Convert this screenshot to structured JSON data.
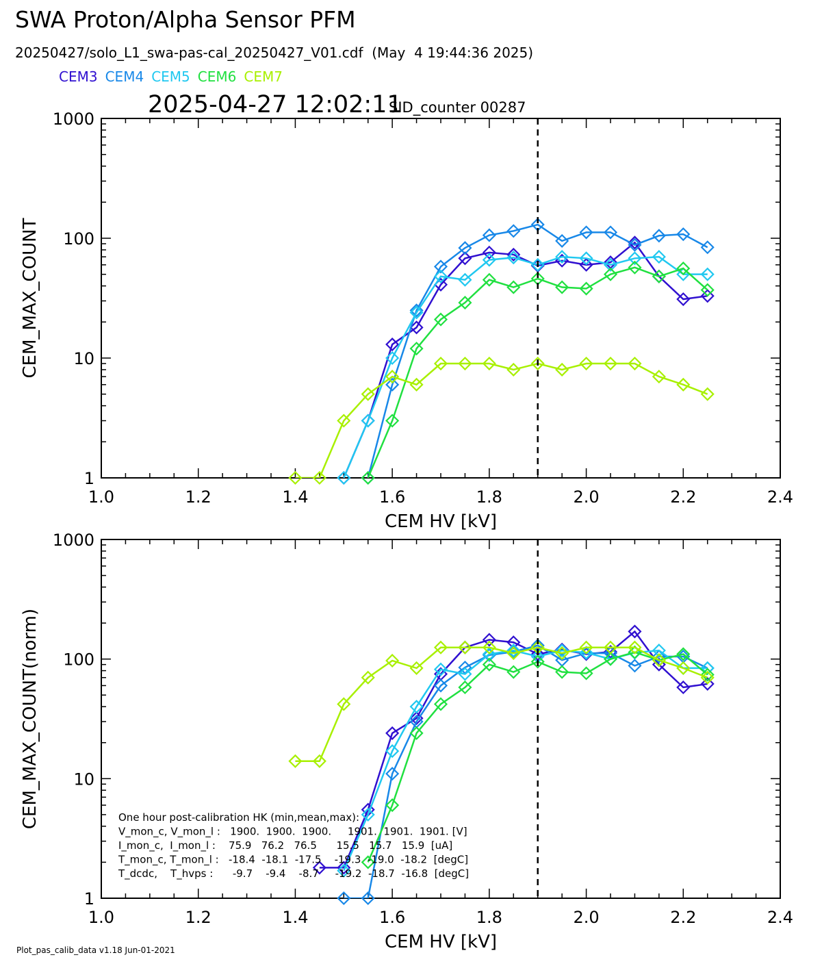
{
  "header": {
    "title": "SWA Proton/Alpha Sensor PFM",
    "file": "20250427/solo_L1_swa-pas-cal_20250427_V01.cdf  (May  4 19:44:36 2025)",
    "timestamp": "2025-04-27 12:02:11",
    "sid": "SID_counter 00287"
  },
  "footer": "Plot_pas_calib_data v1.18 Jun-01-2021",
  "chart_data": [
    {
      "type": "line",
      "xlabel": "CEM HV [kV]",
      "ylabel": "CEM_MAX_COUNT",
      "ylog": true,
      "legend": true,
      "marker": "diamond",
      "vline": 1.9,
      "xlim": [
        1.0,
        2.4
      ],
      "xticks": [
        {
          "value": 1.0,
          "label": "1.0"
        },
        {
          "value": 1.2,
          "label": "1.2"
        },
        {
          "value": 1.4,
          "label": "1.4"
        },
        {
          "value": 1.6,
          "label": "1.6"
        },
        {
          "value": 1.8,
          "label": "1.8"
        },
        {
          "value": 2.0,
          "label": "2.0"
        },
        {
          "value": 2.2,
          "label": "2.2"
        },
        {
          "value": 2.4,
          "label": "2.4"
        }
      ],
      "ylim": [
        1,
        1000
      ],
      "yticks": [
        1,
        10,
        100,
        1000
      ],
      "x": [
        1.4,
        1.45,
        1.5,
        1.55,
        1.6,
        1.65,
        1.7,
        1.75,
        1.8,
        1.85,
        1.9,
        1.95,
        2.0,
        2.05,
        2.1,
        2.15,
        2.2,
        2.25
      ],
      "series": [
        {
          "name": "CEM3",
          "color": "#3010d0",
          "values": [
            null,
            null,
            1,
            3,
            13,
            18,
            41,
            68,
            76,
            73,
            59,
            65,
            60,
            63,
            92,
            48,
            31,
            33
          ]
        },
        {
          "name": "CEM4",
          "color": "#1888e8",
          "values": [
            null,
            null,
            null,
            1,
            6,
            25,
            58,
            83,
            106,
            115,
            130,
            95,
            112,
            112,
            88,
            105,
            108,
            84
          ]
        },
        {
          "name": "CEM5",
          "color": "#20c8f0",
          "values": [
            null,
            null,
            1,
            3,
            10,
            24,
            48,
            45,
            66,
            69,
            60,
            70,
            68,
            60,
            68,
            70,
            50,
            50
          ]
        },
        {
          "name": "CEM6",
          "color": "#20e040",
          "values": [
            null,
            null,
            null,
            1,
            3,
            12,
            21,
            29,
            45,
            39,
            46,
            39,
            38,
            50,
            57,
            48,
            56,
            37
          ]
        },
        {
          "name": "CEM7",
          "color": "#a8f000",
          "values": [
            1,
            1,
            3,
            5,
            7,
            6,
            9,
            9,
            9,
            8,
            9,
            8,
            9,
            9,
            9,
            7,
            6,
            5
          ]
        }
      ]
    },
    {
      "type": "line",
      "xlabel": "CEM HV [kV]",
      "ylabel": "CEM_MAX_COUNT(norm)",
      "ylog": true,
      "legend": false,
      "marker": "diamond",
      "vline": 1.9,
      "xlim": [
        1.0,
        2.4
      ],
      "xticks": [
        {
          "value": 1.0,
          "label": "1.0"
        },
        {
          "value": 1.2,
          "label": "1.2"
        },
        {
          "value": 1.4,
          "label": "1.4"
        },
        {
          "value": 1.6,
          "label": "1.6"
        },
        {
          "value": 1.8,
          "label": "1.8"
        },
        {
          "value": 2.0,
          "label": "2.0"
        },
        {
          "value": 2.2,
          "label": "2.2"
        },
        {
          "value": 2.4,
          "label": "2.4"
        }
      ],
      "ylim": [
        1,
        1000
      ],
      "yticks": [
        1,
        10,
        100,
        1000
      ],
      "x": [
        1.4,
        1.45,
        1.5,
        1.55,
        1.6,
        1.65,
        1.7,
        1.75,
        1.8,
        1.85,
        1.9,
        1.95,
        2.0,
        2.05,
        2.1,
        2.15,
        2.2,
        2.25
      ],
      "series": [
        {
          "color": "#3010d0",
          "values": [
            null,
            1.8,
            1.8,
            5.5,
            24,
            32,
            75,
            125,
            145,
            138,
            110,
            120,
            110,
            115,
            170,
            90,
            58,
            62
          ]
        },
        {
          "color": "#1888e8",
          "values": [
            null,
            null,
            1,
            1,
            11,
            30,
            60,
            85,
            108,
            115,
            130,
            98,
            112,
            112,
            88,
            105,
            105,
            84
          ]
        },
        {
          "color": "#20c8f0",
          "values": [
            null,
            null,
            1.7,
            5,
            17,
            40,
            82,
            75,
            110,
            118,
            105,
            118,
            113,
            100,
            113,
            118,
            84,
            84
          ]
        },
        {
          "color": "#20e040",
          "values": [
            null,
            null,
            null,
            2,
            6,
            24,
            42,
            58,
            90,
            78,
            95,
            78,
            76,
            100,
            114,
            98,
            110,
            74
          ]
        },
        {
          "color": "#a8f000",
          "values": [
            14,
            14,
            42,
            70,
            97,
            84,
            125,
            125,
            125,
            112,
            125,
            112,
            125,
            125,
            125,
            98,
            84,
            70
          ]
        }
      ],
      "annotations": [
        "One hour post-calibration HK (min,mean,max):",
        "V_mon_c, V_mon_l :   1900.  1900.  1900.     1901.  1901.  1901. [V]",
        "I_mon_c,  I_mon_l :    75.9   76.2   76.5      15.5   15.7   15.9  [uA]",
        "T_mon_c, T_mon_l :   -18.4  -18.1  -17.5    -19.3  -19.0  -18.2  [degC]",
        "T_dcdc,    T_hvps :      -9.7    -9.4    -8.7     -19.2  -18.7  -16.8  [degC]"
      ]
    }
  ]
}
